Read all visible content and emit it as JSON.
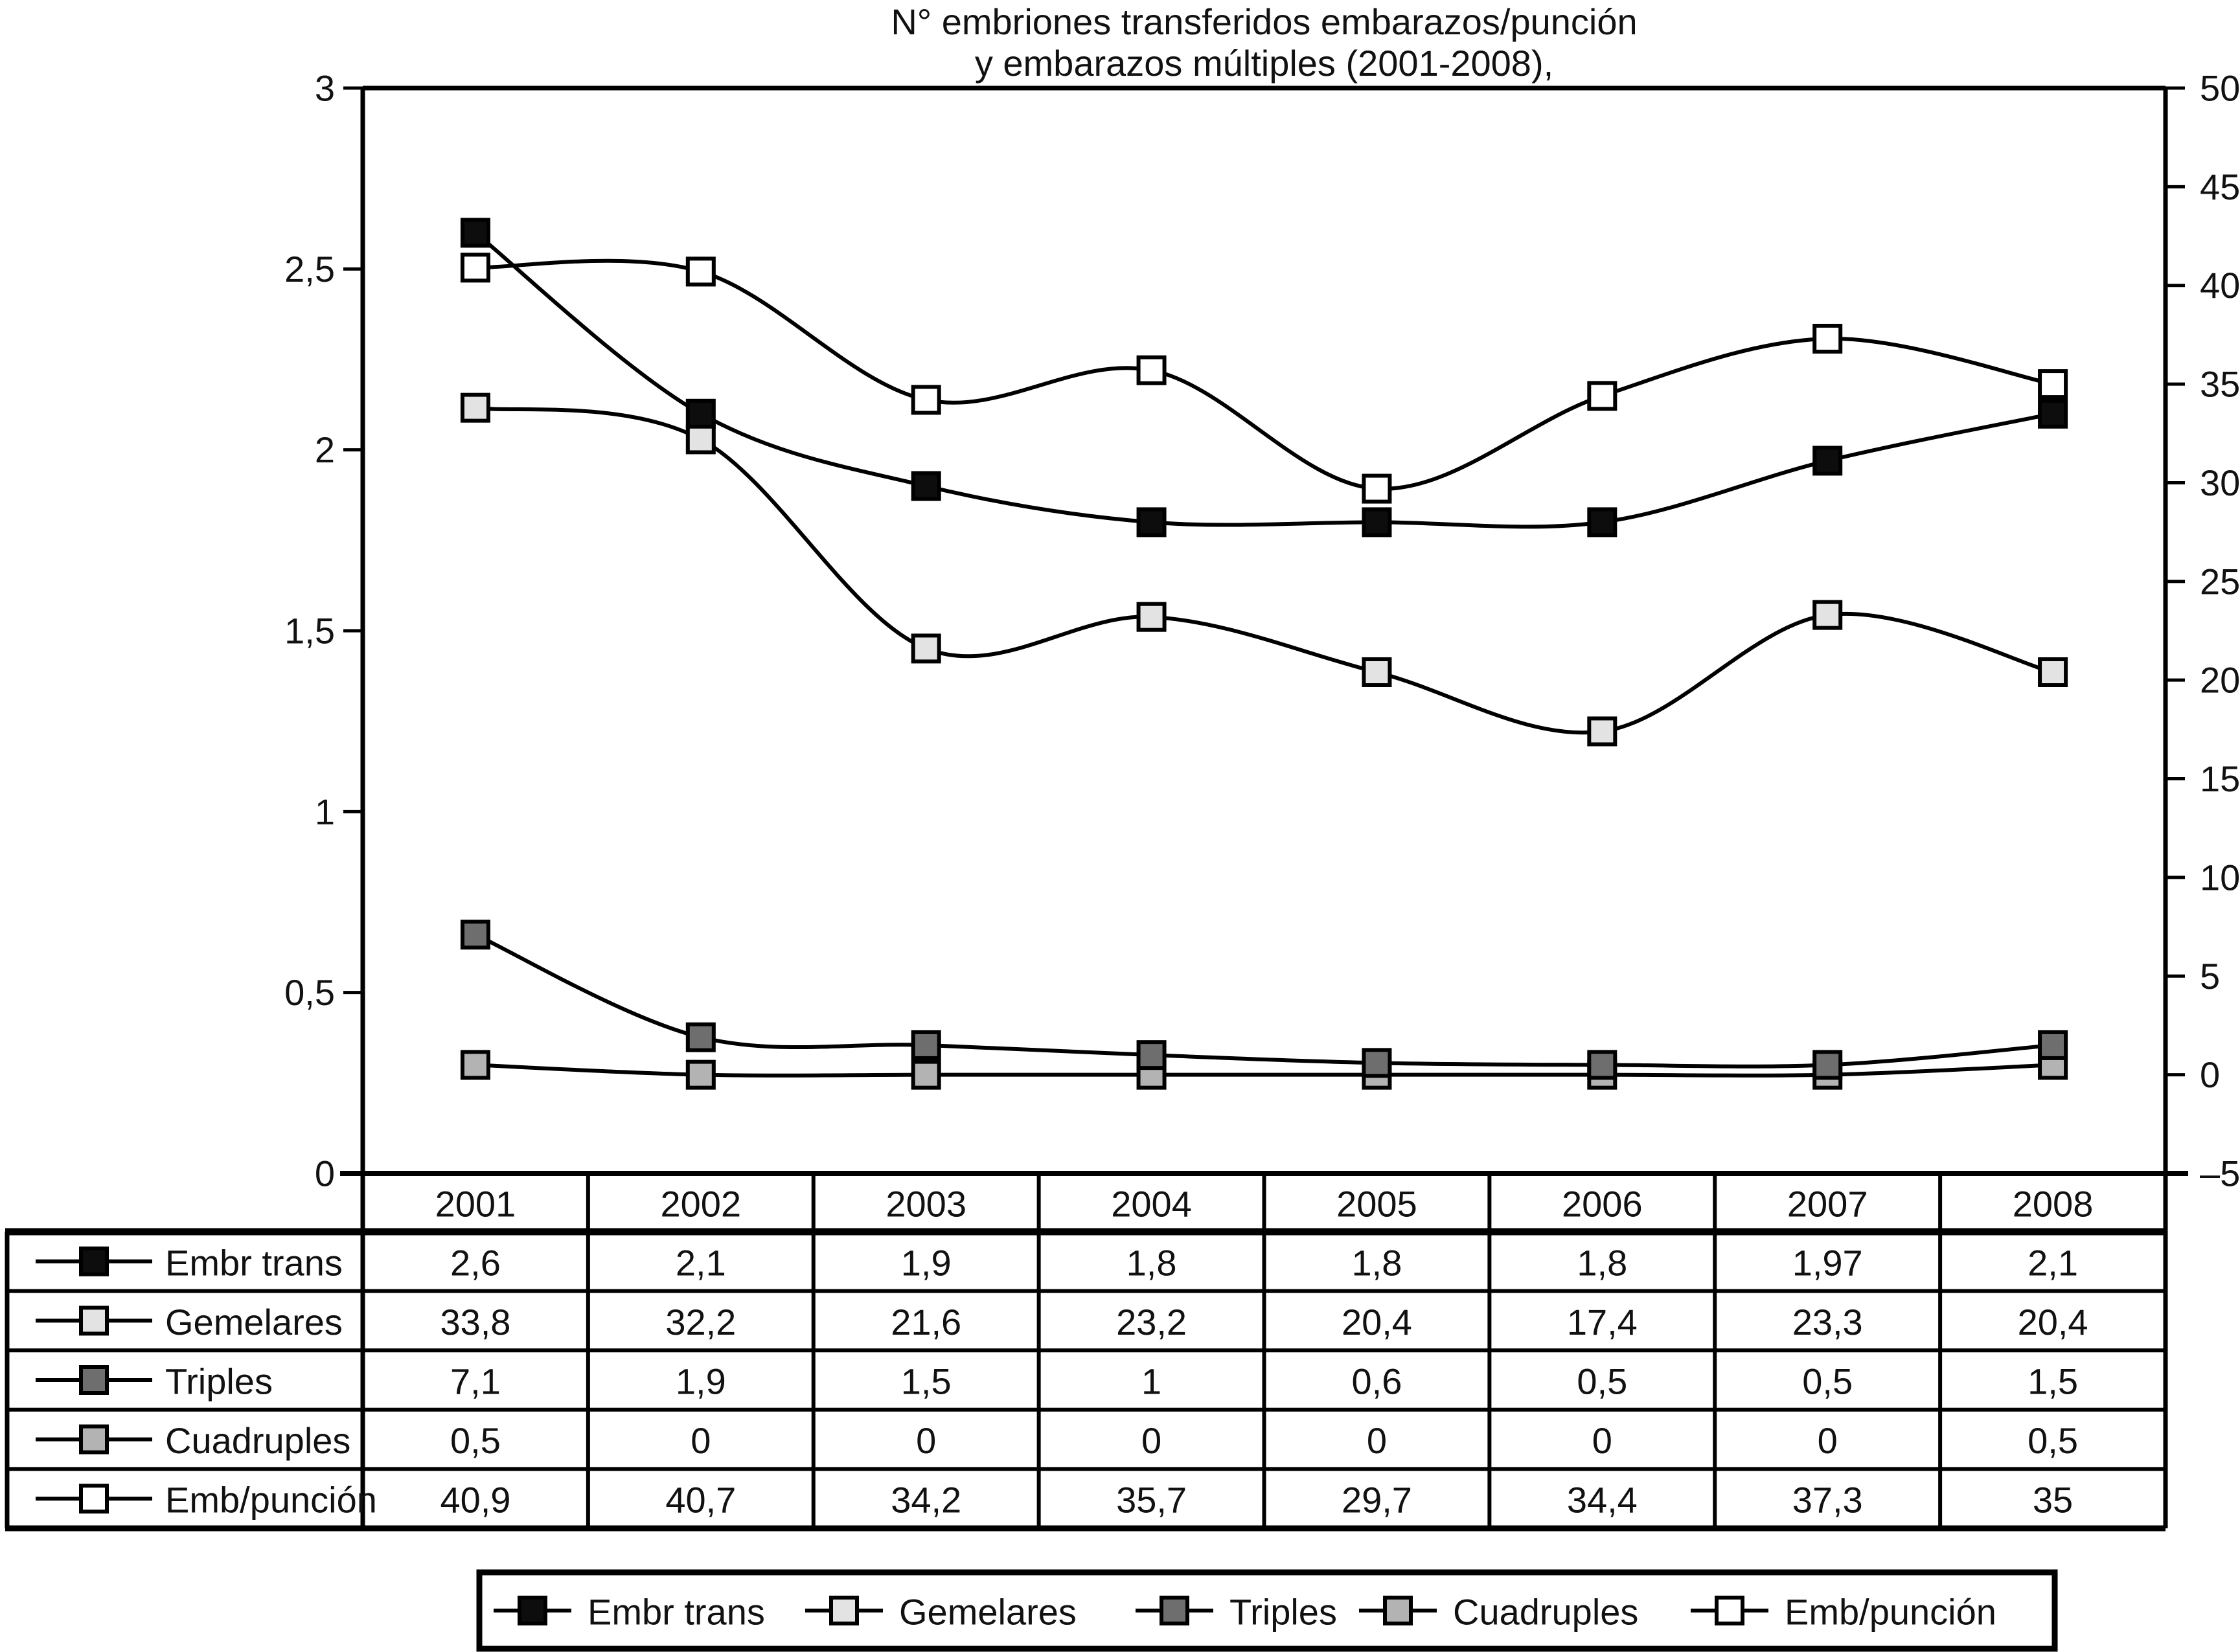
{
  "figure": {
    "title_line1": "N° embriones transferidos embarazos/punción",
    "title_line2": "y embarazos múltiples (2001-2008),"
  },
  "colors": {
    "line": "#000000",
    "text": "#111111",
    "background": "#ffffff"
  },
  "chart_data": {
    "type": "line",
    "title": "N° embriones transferidos embarazos/punción y embarazos múltiples (2001-2008),",
    "categories": [
      "2001",
      "2002",
      "2003",
      "2004",
      "2005",
      "2006",
      "2007",
      "2008"
    ],
    "series": [
      {
        "name": "Embr trans",
        "axis": "left",
        "marker_fill": "#0d0d0d",
        "values": [
          2.6,
          2.1,
          1.9,
          1.8,
          1.8,
          1.8,
          1.97,
          2.1
        ]
      },
      {
        "name": "Gemelares",
        "axis": "right",
        "marker_fill": "#e3e3e3",
        "values": [
          33.8,
          32.2,
          21.6,
          23.2,
          20.4,
          17.4,
          23.3,
          20.4
        ]
      },
      {
        "name": "Triples",
        "axis": "right",
        "marker_fill": "#6e6e6e",
        "values": [
          7.1,
          1.9,
          1.5,
          1,
          0.6,
          0.5,
          0.5,
          1.5
        ]
      },
      {
        "name": "Cuadruples",
        "axis": "right",
        "marker_fill": "#b3b3b3",
        "values": [
          0.5,
          0,
          0,
          0,
          0,
          0,
          0,
          0.5
        ]
      },
      {
        "name": "Emb/punción",
        "axis": "right",
        "marker_fill": "#ffffff",
        "values": [
          40.9,
          40.7,
          34.2,
          35.7,
          29.7,
          34.4,
          37.3,
          35
        ]
      }
    ],
    "left_axis": {
      "min": 0,
      "max": 3,
      "step": 0.5,
      "ticks_top_to_bottom": [
        "3",
        "2,5",
        "2",
        "1,5",
        "1",
        "0,5",
        "0"
      ]
    },
    "right_axis": {
      "min": -5,
      "max": 50,
      "step": 5,
      "ticks_top_to_bottom": [
        "50",
        "45",
        "40",
        "35",
        "30",
        "25",
        "20",
        "15",
        "10",
        "5",
        "0",
        "–5"
      ]
    },
    "grid": false,
    "legend_position": "bottom",
    "decimal_comma": true,
    "smoothed_lines": true,
    "table_below_chart": true
  }
}
